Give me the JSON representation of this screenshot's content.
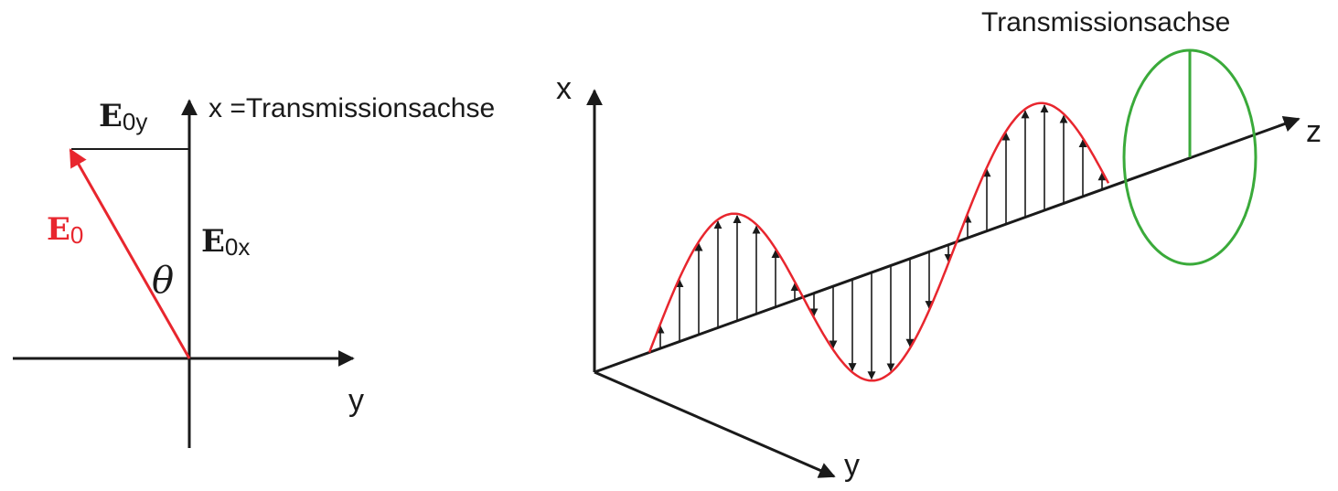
{
  "left_diagram": {
    "x_axis_label": "x =Transmissionsachse",
    "y_axis_label": "y",
    "e0_symbol": "E",
    "e0_subscript": "0",
    "e0y_symbol": "E",
    "e0y_subscript": "0y",
    "e0x_symbol": "E",
    "e0x_subscript": "0x",
    "angle_symbol": "θ",
    "field_vector_color": "#e8262e",
    "axis_color": "#1a1a1a"
  },
  "right_diagram": {
    "x_axis_label": "x",
    "y_axis_label": "y",
    "z_axis_label": "z",
    "polarizer_label": "Transmissionsachse",
    "wave_color": "#e8262e",
    "polarizer_color": "#3aaa3a"
  }
}
